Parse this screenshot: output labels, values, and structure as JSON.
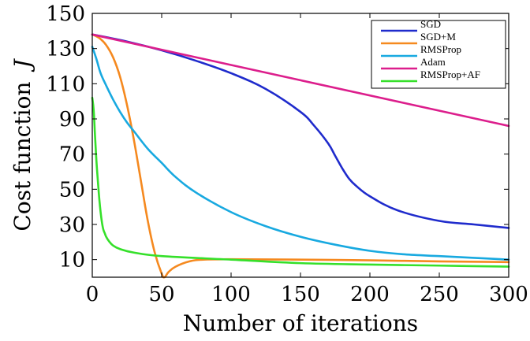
{
  "chart_data": {
    "type": "line",
    "xlabel": "Number of iterations",
    "ylabel": "Cost function",
    "ylabel_symbol": "J",
    "xlim": [
      0,
      300
    ],
    "ylim": [
      0,
      150
    ],
    "xticks": [
      0,
      50,
      100,
      150,
      200,
      250,
      300
    ],
    "yticks": [
      10,
      30,
      50,
      70,
      90,
      110,
      130,
      150
    ],
    "grid": false,
    "legend_position": "top-right",
    "series": [
      {
        "name": "SGD",
        "color": "#1f2bcc",
        "x": [
          0,
          25,
          50,
          75,
          100,
          125,
          150,
          160,
          170,
          175,
          180,
          185,
          190,
          200,
          220,
          250,
          275,
          300
        ],
        "y": [
          138,
          134,
          129,
          123,
          116,
          107,
          94,
          86,
          76,
          69,
          62,
          56,
          52,
          46,
          38,
          32,
          30,
          28
        ]
      },
      {
        "name": "SGD+M",
        "color": "#f5891f",
        "x": [
          0,
          5,
          10,
          15,
          20,
          25,
          30,
          35,
          40,
          45,
          50,
          52,
          55,
          60,
          70,
          80,
          100,
          150,
          200,
          250,
          300
        ],
        "y": [
          138,
          136,
          132,
          125,
          114,
          98,
          78,
          55,
          32,
          14,
          2,
          0,
          3,
          6,
          9,
          10,
          10.2,
          10,
          9.6,
          9,
          8.6
        ]
      },
      {
        "name": "RMSProp",
        "color": "#18a9e0",
        "x": [
          0,
          3,
          6,
          10,
          15,
          20,
          25,
          30,
          40,
          50,
          60,
          75,
          100,
          125,
          150,
          175,
          200,
          225,
          250,
          275,
          300
        ],
        "y": [
          131,
          124,
          116,
          109,
          101,
          94,
          88,
          83,
          73,
          65,
          57,
          48,
          37,
          29,
          23,
          18.5,
          15,
          13,
          12,
          11,
          10
        ]
      },
      {
        "name": "Adam",
        "color": "#dc1e8c",
        "x": [
          0,
          300
        ],
        "y": [
          138,
          86
        ]
      },
      {
        "name": "RMSProp+AF",
        "color": "#35e02a",
        "x": [
          0,
          1,
          2,
          3,
          4,
          5,
          6,
          7,
          8,
          9,
          10,
          12,
          15,
          20,
          30,
          50,
          100,
          150,
          200,
          250,
          300
        ],
        "y": [
          102,
          95,
          80,
          66,
          55,
          45,
          37,
          31,
          27,
          25,
          23,
          20.5,
          18,
          16,
          14,
          12,
          10,
          8,
          7.2,
          6.6,
          6
        ]
      }
    ]
  }
}
